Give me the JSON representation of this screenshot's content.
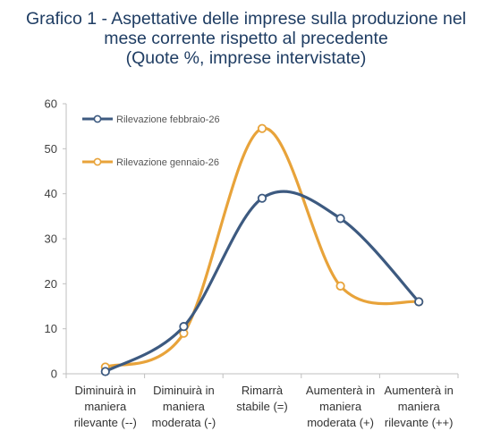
{
  "chart_data": {
    "type": "line",
    "title_lines": [
      "Grafico 1 - Aspettative delle imprese sulla produzione nel",
      "mese corrente rispetto al precedente",
      "(Quote %, imprese intervistate)"
    ],
    "categories": [
      [
        "Diminuirà in",
        "maniera",
        "rilevante (--)"
      ],
      [
        "Diminuirà in",
        "maniera",
        "moderata (-)"
      ],
      [
        "Rimarrà",
        "stabile (=)"
      ],
      [
        "Aumenterà in",
        "maniera",
        "moderata (+)"
      ],
      [
        "Aumenterà in",
        "maniera",
        "rilevante (++)"
      ]
    ],
    "series": [
      {
        "name": "Rilevazione febbraio-26",
        "color": "#3d5a80",
        "values": [
          0.5,
          10.5,
          39.0,
          34.5,
          16.0
        ]
      },
      {
        "name": "Rilevazione gennaio-26",
        "color": "#e8a33a",
        "values": [
          1.5,
          9.0,
          54.5,
          19.5,
          16.0
        ]
      }
    ],
    "ylim": [
      0,
      60
    ],
    "yticks": [
      "0",
      "10",
      "20",
      "30",
      "40",
      "50",
      "60"
    ],
    "grid": false,
    "smooth": true,
    "legend_position": "top-left"
  }
}
